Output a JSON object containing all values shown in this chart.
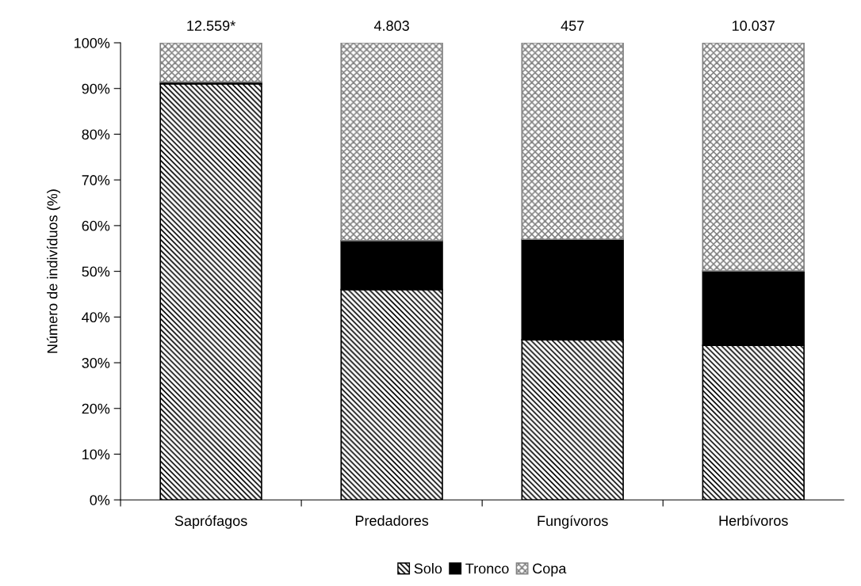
{
  "chart_data": {
    "type": "bar",
    "stacked": true,
    "ylabel": "Número de indivíduos (%)",
    "categories": [
      "Saprófagos",
      "Predadores",
      "Fungívoros",
      "Herbívoros"
    ],
    "series": [
      {
        "name": "Solo",
        "color": "#000000",
        "values": [
          91.0,
          46.0,
          35.0,
          33.8
        ]
      },
      {
        "name": "Tronco",
        "color": "#000000",
        "values": [
          0.4,
          10.7,
          22.0,
          16.3
        ]
      },
      {
        "name": "Copa",
        "color": "#808080",
        "values": [
          8.6,
          43.3,
          43.0,
          49.9
        ]
      }
    ],
    "annotations": [
      "12.559*",
      "4.803",
      "457",
      "10.037"
    ],
    "ylim": [
      0,
      100
    ],
    "yticks": [
      {
        "value": 0,
        "label": "0%"
      },
      {
        "value": 10,
        "label": "10%"
      },
      {
        "value": 20,
        "label": "20%"
      },
      {
        "value": 30,
        "label": "30%"
      },
      {
        "value": 40,
        "label": "40%"
      },
      {
        "value": 50,
        "label": "50%"
      },
      {
        "value": 60,
        "label": "60%"
      },
      {
        "value": 70,
        "label": "70%"
      },
      {
        "value": 80,
        "label": "80%"
      },
      {
        "value": 90,
        "label": "90%"
      },
      {
        "value": 100,
        "label": "100%"
      }
    ],
    "grid": false,
    "legend": "bottom"
  }
}
